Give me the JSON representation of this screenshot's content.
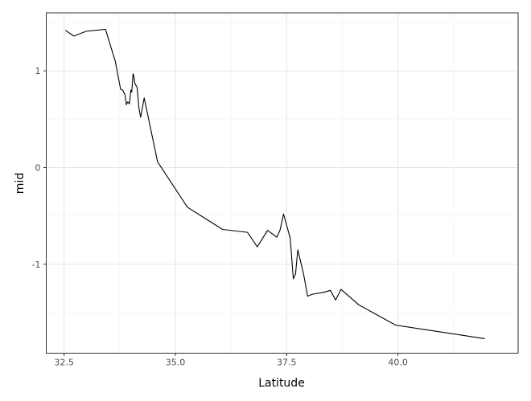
{
  "chart_data": {
    "type": "line",
    "title": "",
    "xlabel": "Latitude",
    "ylabel": "mid",
    "xlim": [
      32.1,
      42.7
    ],
    "ylim": [
      -1.92,
      1.6
    ],
    "x_ticks": [
      32.5,
      35.0,
      37.5,
      40.0
    ],
    "x_tick_labels": [
      "32.5",
      "35.0",
      "37.5",
      "40.0"
    ],
    "y_ticks": [
      1,
      0,
      -1
    ],
    "y_tick_labels": [
      "1",
      "0",
      "-1"
    ],
    "grid": true,
    "legend": "none",
    "series": [
      {
        "color": "#000000",
        "points": [
          [
            32.53,
            1.42
          ],
          [
            32.72,
            1.36
          ],
          [
            33.0,
            1.41
          ],
          [
            33.43,
            1.43
          ],
          [
            33.65,
            1.1
          ],
          [
            33.77,
            0.81
          ],
          [
            33.82,
            0.8
          ],
          [
            33.87,
            0.75
          ],
          [
            33.9,
            0.65
          ],
          [
            33.93,
            0.68
          ],
          [
            33.97,
            0.66
          ],
          [
            34.0,
            0.8
          ],
          [
            34.02,
            0.78
          ],
          [
            34.05,
            0.97
          ],
          [
            34.07,
            0.94
          ],
          [
            34.09,
            0.87
          ],
          [
            34.14,
            0.83
          ],
          [
            34.18,
            0.62
          ],
          [
            34.22,
            0.52
          ],
          [
            34.3,
            0.72
          ],
          [
            34.6,
            0.06
          ],
          [
            35.27,
            -0.41
          ],
          [
            36.06,
            -0.64
          ],
          [
            36.62,
            -0.67
          ],
          [
            36.84,
            -0.82
          ],
          [
            37.07,
            -0.65
          ],
          [
            37.28,
            -0.72
          ],
          [
            37.35,
            -0.65
          ],
          [
            37.43,
            -0.48
          ],
          [
            37.58,
            -0.73
          ],
          [
            37.65,
            -1.15
          ],
          [
            37.7,
            -1.1
          ],
          [
            37.75,
            -0.85
          ],
          [
            37.88,
            -1.1
          ],
          [
            37.97,
            -1.33
          ],
          [
            38.08,
            -1.31
          ],
          [
            38.34,
            -1.29
          ],
          [
            38.48,
            -1.27
          ],
          [
            38.6,
            -1.37
          ],
          [
            38.72,
            -1.26
          ],
          [
            39.12,
            -1.42
          ],
          [
            39.95,
            -1.63
          ],
          [
            41.95,
            -1.77
          ]
        ]
      }
    ]
  }
}
